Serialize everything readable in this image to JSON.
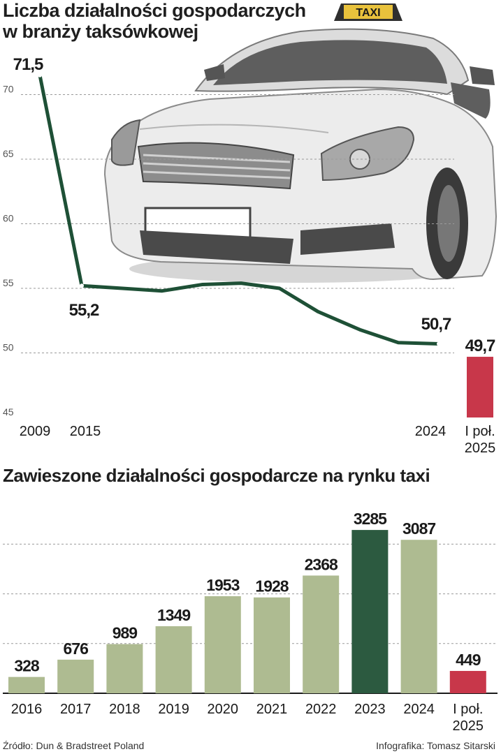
{
  "chart_data": [
    {
      "type": "line",
      "title": "Liczba działalności gospodarczych w branży taksówkowej",
      "title_lines": [
        "Liczba działalności gospodarczych",
        "w branży taksówkowej"
      ],
      "x": [
        "2009",
        "2015",
        "2016",
        "2017",
        "2018",
        "2019",
        "2020",
        "2021",
        "2022",
        "2023",
        "2024"
      ],
      "values": [
        71.5,
        55.2,
        55.0,
        54.8,
        55.3,
        55.4,
        55.0,
        53.2,
        51.8,
        50.8,
        50.7
      ],
      "labeled_points": [
        {
          "x": "2009",
          "label": "71,5"
        },
        {
          "x": "2015",
          "label": "55,2"
        },
        {
          "x": "2024",
          "label": "50,7"
        }
      ],
      "extra_bar": {
        "label_lines": [
          "I poł.",
          "2025"
        ],
        "value": 49.7,
        "value_label": "49,7",
        "color": "#c8374a"
      },
      "x_tick_labels": [
        "2009",
        "2015",
        "2024"
      ],
      "y_ticks": [
        45,
        50,
        55,
        60,
        65,
        70
      ],
      "ylim": [
        45,
        72
      ],
      "line_color": "#1e5036",
      "grid": "dashed horizontal"
    },
    {
      "type": "bar",
      "title": "Zawieszone działalności gospodarcze na rynku taxi",
      "categories": [
        "2016",
        "2017",
        "2018",
        "2019",
        "2020",
        "2021",
        "2022",
        "2023",
        "2024",
        "I poł. 2025"
      ],
      "category_lines": [
        [
          "2016"
        ],
        [
          "2017"
        ],
        [
          "2018"
        ],
        [
          "2019"
        ],
        [
          "2020"
        ],
        [
          "2021"
        ],
        [
          "2022"
        ],
        [
          "2023"
        ],
        [
          "2024"
        ],
        [
          "I poł.",
          "2025"
        ]
      ],
      "values": [
        328,
        676,
        989,
        1349,
        1953,
        1928,
        2368,
        3285,
        3087,
        449
      ],
      "colors": [
        "#aebb91",
        "#aebb91",
        "#aebb91",
        "#aebb91",
        "#aebb91",
        "#aebb91",
        "#aebb91",
        "#2c5a40",
        "#aebb91",
        "#c8374a"
      ],
      "ylim": [
        0,
        3400
      ],
      "grid": "dashed horizontal",
      "gridlines": [
        1000,
        2000,
        3000
      ]
    }
  ],
  "taxi_sign": "TAXI",
  "footer": {
    "source": "Źródło: Dun & Bradstreet Poland",
    "credit": "Infografika: Tomasz Sitarski"
  },
  "colors": {
    "line": "#1e5036",
    "bar_default": "#aebb91",
    "bar_highlight": "#2c5a40",
    "bar_partial": "#c8374a"
  }
}
